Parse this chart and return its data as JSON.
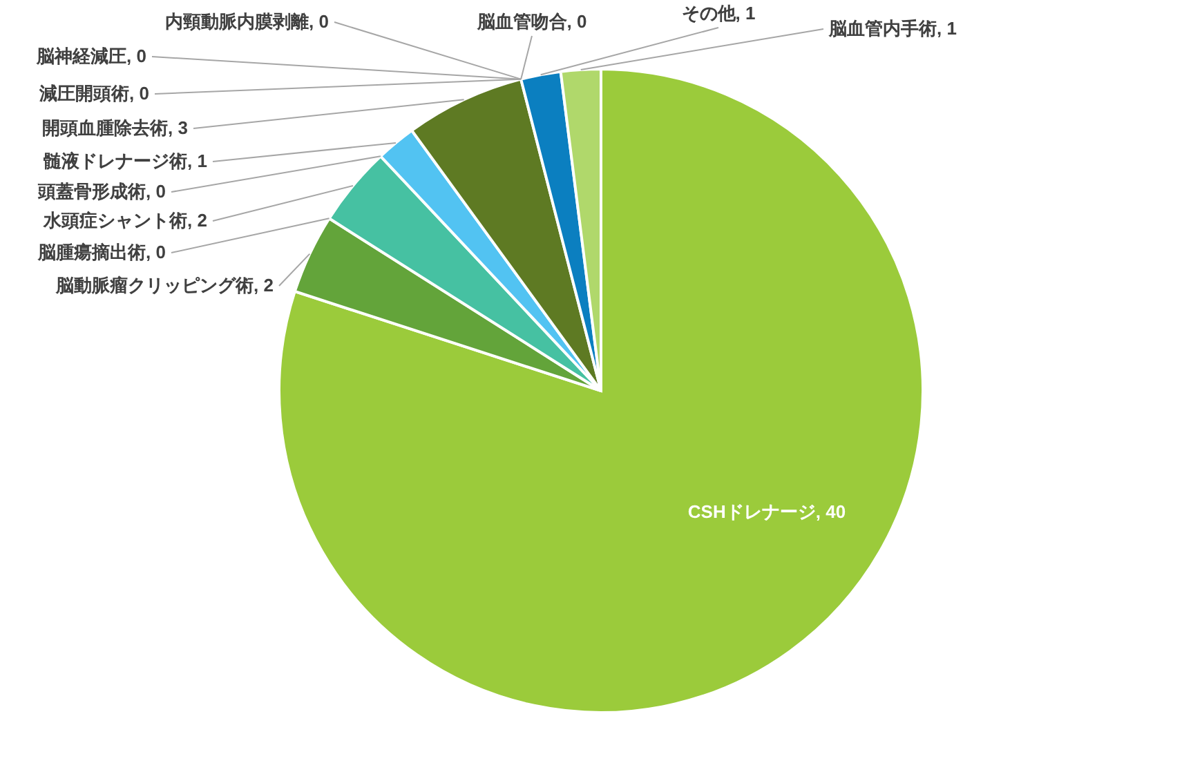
{
  "chart_data": {
    "type": "pie",
    "value_labels": [
      ", 40",
      ", 2",
      ", 0",
      ", 2",
      ", 0",
      ", 1",
      ", 3",
      ", 0",
      ", 0",
      ", 0",
      ", 0",
      ", 1",
      ", 1"
    ],
    "categories": [
      "CSHドレナージ",
      "脳動脈瘤クリッピング術",
      "脳腫瘍摘出術",
      "水頭症シャント術",
      "頭蓋骨形成術",
      "髄液ドレナージ術",
      "開頭血腫除去術",
      "減圧開頭術",
      "脳神経減圧",
      "内頸動脈内膜剥離",
      "脳血管吻合",
      "その他",
      "脳血管内手術"
    ],
    "values": [
      40,
      2,
      0,
      2,
      0,
      1,
      3,
      0,
      0,
      0,
      0,
      1,
      1
    ],
    "colors": [
      "#9bcb3b",
      "#63a43a",
      null,
      "#46c1a2",
      null,
      "#52c3f2",
      "#5e7a23",
      null,
      null,
      null,
      null,
      "#0b7fc0",
      "#b0d86b"
    ]
  }
}
